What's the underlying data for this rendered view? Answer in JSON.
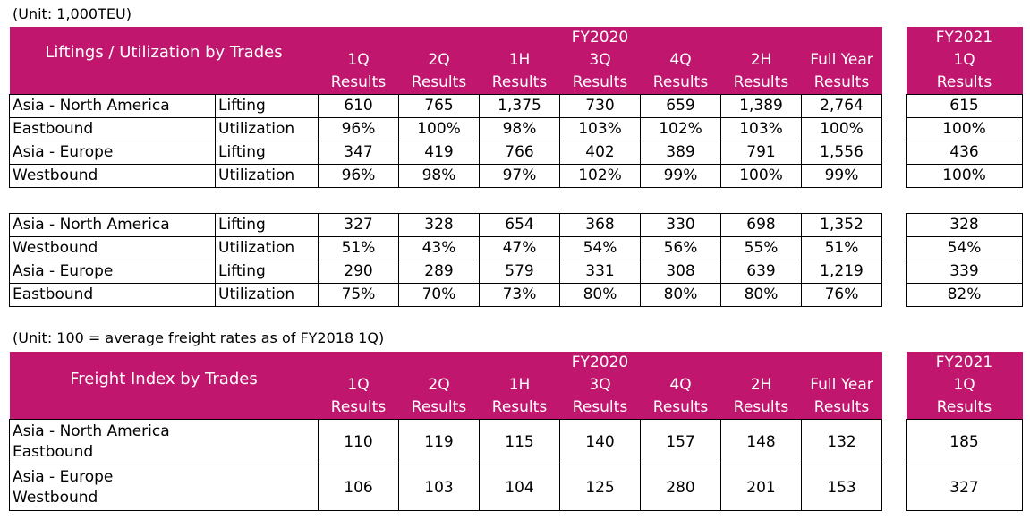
{
  "unit1": "(Unit: 1,000TEU)",
  "unit2": "(Unit: 100 = average freight rates as of FY2018 1Q)",
  "colors": {
    "header_bg": "#c0166e",
    "header_text": "#ffffff",
    "border": "#000000"
  },
  "t1": {
    "title": "Liftings / Utilization by Trades",
    "fy2020": "FY2020",
    "fy2021": "FY2021",
    "cols": [
      {
        "a": "1Q",
        "b": "Results"
      },
      {
        "a": "2Q",
        "b": "Results"
      },
      {
        "a": "1H",
        "b": "Results"
      },
      {
        "a": "3Q",
        "b": "Results"
      },
      {
        "a": "4Q",
        "b": "Results"
      },
      {
        "a": "2H",
        "b": "Results"
      },
      {
        "a": "Full Year",
        "b": "Results"
      }
    ],
    "col2021": {
      "a": "1Q",
      "b": "Results"
    },
    "rows": [
      {
        "trade": "Asia - North America",
        "metric": "Lifting",
        "vals": [
          "610",
          "765",
          "1,375",
          "730",
          "659",
          "1,389",
          "2,764"
        ],
        "fy21": "615"
      },
      {
        "trade": "Eastbound",
        "metric": "Utilization",
        "vals": [
          "96%",
          "100%",
          "98%",
          "103%",
          "102%",
          "103%",
          "100%"
        ],
        "fy21": "100%"
      },
      {
        "trade": "Asia - Europe",
        "metric": "Lifting",
        "vals": [
          "347",
          "419",
          "766",
          "402",
          "389",
          "791",
          "1,556"
        ],
        "fy21": "436"
      },
      {
        "trade": "Westbound",
        "metric": "Utilization",
        "vals": [
          "96%",
          "98%",
          "97%",
          "102%",
          "99%",
          "100%",
          "99%"
        ],
        "fy21": "100%"
      }
    ]
  },
  "t2": {
    "rows": [
      {
        "trade": "Asia - North America",
        "metric": "Lifting",
        "vals": [
          "327",
          "328",
          "654",
          "368",
          "330",
          "698",
          "1,352"
        ],
        "fy21": "328"
      },
      {
        "trade": "Westbound",
        "metric": "Utilization",
        "vals": [
          "51%",
          "43%",
          "47%",
          "54%",
          "56%",
          "55%",
          "51%"
        ],
        "fy21": "54%"
      },
      {
        "trade": "Asia - Europe",
        "metric": "Lifting",
        "vals": [
          "290",
          "289",
          "579",
          "331",
          "308",
          "639",
          "1,219"
        ],
        "fy21": "339"
      },
      {
        "trade": "Eastbound",
        "metric": "Utilization",
        "vals": [
          "75%",
          "70%",
          "73%",
          "80%",
          "80%",
          "80%",
          "76%"
        ],
        "fy21": "82%"
      }
    ]
  },
  "t3": {
    "title": "Freight Index by Trades",
    "fy2020": "FY2020",
    "fy2021": "FY2021",
    "cols": [
      {
        "a": "1Q",
        "b": "Results"
      },
      {
        "a": "2Q",
        "b": "Results"
      },
      {
        "a": "1H",
        "b": "Results"
      },
      {
        "a": "3Q",
        "b": "Results"
      },
      {
        "a": "4Q",
        "b": "Results"
      },
      {
        "a": "2H",
        "b": "Results"
      },
      {
        "a": "Full Year",
        "b": "Results"
      }
    ],
    "col2021": {
      "a": "1Q",
      "b": "Results"
    },
    "rows": [
      {
        "line1": "Asia - North America",
        "line2": "Eastbound",
        "vals": [
          "110",
          "119",
          "115",
          "140",
          "157",
          "148",
          "132"
        ],
        "fy21": "185"
      },
      {
        "line1": "Asia - Europe",
        "line2": "Westbound",
        "vals": [
          "106",
          "103",
          "104",
          "125",
          "280",
          "201",
          "153"
        ],
        "fy21": "327"
      }
    ]
  }
}
